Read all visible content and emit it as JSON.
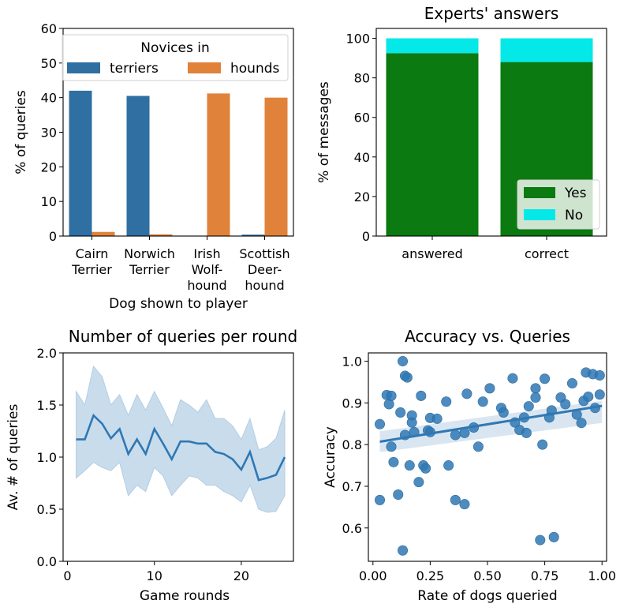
{
  "chart_data": [
    {
      "type": "bar",
      "xlabel": "Dog shown to player",
      "ylabel": "% of queries",
      "ylim": [
        0,
        60
      ],
      "yticks": [
        "0",
        "10",
        "20",
        "30",
        "40",
        "50",
        "60"
      ],
      "categories": [
        [
          "Cairn",
          "Terrier"
        ],
        [
          "Norwich",
          "Terrier"
        ],
        [
          "Irish",
          "Wolf-",
          "hound"
        ],
        [
          "Scottish",
          "Deer-",
          "hound"
        ]
      ],
      "legend_title": "Novices in",
      "legend_position": "top",
      "series": [
        {
          "name": "terriers",
          "color": "#2f6fa2",
          "values": [
            42.0,
            40.5,
            0.0,
            0.4
          ]
        },
        {
          "name": "hounds",
          "color": "#e0823a",
          "values": [
            1.2,
            0.5,
            41.2,
            40.0
          ]
        }
      ]
    },
    {
      "type": "bar",
      "stacked": true,
      "title": "Experts' answers",
      "ylabel": "% of messages",
      "ylim": [
        0,
        105
      ],
      "yticks": [
        "0",
        "20",
        "40",
        "60",
        "80",
        "100"
      ],
      "categories": [
        "answered",
        "correct"
      ],
      "legend_position": "lower right",
      "series": [
        {
          "name": "Yes",
          "color": "#0b7a10",
          "values": [
            92.5,
            88.0
          ]
        },
        {
          "name": "No",
          "color": "#05e8e8",
          "values": [
            7.5,
            12.0
          ]
        }
      ]
    },
    {
      "type": "line",
      "title": "Number of queries per round",
      "xlabel": "Game rounds",
      "ylabel": "Av. # of queries",
      "xlim": [
        -0.5,
        26
      ],
      "ylim": [
        0.0,
        2.0
      ],
      "xticks": [
        "0",
        "10",
        "20"
      ],
      "yticks": [
        "0.0",
        "0.5",
        "1.0",
        "1.5",
        "2.0"
      ],
      "color": "#2f78b4",
      "band_color": "#c9dcec",
      "x": [
        1,
        2,
        3,
        4,
        5,
        6,
        7,
        8,
        9,
        10,
        11,
        12,
        13,
        14,
        15,
        16,
        17,
        18,
        19,
        20,
        21,
        22,
        23,
        24,
        25
      ],
      "y": [
        1.17,
        1.17,
        1.4,
        1.32,
        1.18,
        1.27,
        1.03,
        1.17,
        1.03,
        1.27,
        1.13,
        0.98,
        1.15,
        1.15,
        1.13,
        1.13,
        1.05,
        1.03,
        0.98,
        0.88,
        1.05,
        0.78,
        0.8,
        0.83,
        1.0
      ],
      "ci_upper": [
        1.63,
        1.5,
        1.87,
        1.77,
        1.5,
        1.6,
        1.4,
        1.6,
        1.45,
        1.63,
        1.47,
        1.3,
        1.55,
        1.5,
        1.43,
        1.55,
        1.37,
        1.37,
        1.3,
        1.17,
        1.37,
        1.07,
        1.1,
        1.18,
        1.45
      ],
      "ci_lower": [
        0.8,
        0.87,
        0.95,
        0.9,
        0.87,
        0.95,
        0.63,
        0.73,
        0.67,
        0.9,
        0.82,
        0.63,
        0.73,
        0.82,
        0.8,
        0.73,
        0.73,
        0.67,
        0.63,
        0.57,
        0.73,
        0.5,
        0.47,
        0.48,
        0.63
      ]
    },
    {
      "type": "scatter",
      "title": "Accuracy vs. Queries",
      "xlabel": "Rate of dogs queried",
      "ylabel": "Accuracy",
      "xlim": [
        -0.02,
        1.02
      ],
      "ylim": [
        0.52,
        1.02
      ],
      "xticks": [
        "0.00",
        "0.25",
        "0.50",
        "0.75",
        "1.00"
      ],
      "yticks": [
        "0.6",
        "0.7",
        "0.8",
        "0.9",
        "1.0"
      ],
      "color": "#2f78b4",
      "regression": {
        "x": [
          0.03,
          1.0
        ],
        "y": [
          0.807,
          0.893
        ],
        "band_upper": [
          0.832,
          0.905
        ],
        "band_lower": [
          0.782,
          0.852
        ]
      },
      "points": [
        [
          0.03,
          0.667
        ],
        [
          0.03,
          0.849
        ],
        [
          0.06,
          0.919
        ],
        [
          0.07,
          0.897
        ],
        [
          0.08,
          0.917
        ],
        [
          0.09,
          0.758
        ],
        [
          0.08,
          0.795
        ],
        [
          0.11,
          0.68
        ],
        [
          0.13,
          1.0
        ],
        [
          0.12,
          0.877
        ],
        [
          0.14,
          0.965
        ],
        [
          0.15,
          0.961
        ],
        [
          0.14,
          0.823
        ],
        [
          0.16,
          0.75
        ],
        [
          0.17,
          0.87
        ],
        [
          0.17,
          0.853
        ],
        [
          0.18,
          0.83
        ],
        [
          0.13,
          0.546
        ],
        [
          0.2,
          0.71
        ],
        [
          0.21,
          0.917
        ],
        [
          0.22,
          0.75
        ],
        [
          0.23,
          0.743
        ],
        [
          0.24,
          0.834
        ],
        [
          0.25,
          0.864
        ],
        [
          0.25,
          0.83
        ],
        [
          0.28,
          0.862
        ],
        [
          0.32,
          0.903
        ],
        [
          0.33,
          0.75
        ],
        [
          0.36,
          0.823
        ],
        [
          0.36,
          0.667
        ],
        [
          0.4,
          0.657
        ],
        [
          0.41,
          0.922
        ],
        [
          0.4,
          0.828
        ],
        [
          0.44,
          0.841
        ],
        [
          0.46,
          0.795
        ],
        [
          0.48,
          0.903
        ],
        [
          0.51,
          0.935
        ],
        [
          0.56,
          0.888
        ],
        [
          0.57,
          0.877
        ],
        [
          0.61,
          0.959
        ],
        [
          0.62,
          0.853
        ],
        [
          0.64,
          0.835
        ],
        [
          0.66,
          0.865
        ],
        [
          0.67,
          0.828
        ],
        [
          0.68,
          0.892
        ],
        [
          0.71,
          0.935
        ],
        [
          0.71,
          0.913
        ],
        [
          0.73,
          0.571
        ],
        [
          0.74,
          0.8
        ],
        [
          0.75,
          0.958
        ],
        [
          0.77,
          0.865
        ],
        [
          0.78,
          0.882
        ],
        [
          0.79,
          0.578
        ],
        [
          0.82,
          0.913
        ],
        [
          0.84,
          0.897
        ],
        [
          0.87,
          0.947
        ],
        [
          0.89,
          0.872
        ],
        [
          0.91,
          0.852
        ],
        [
          0.92,
          0.905
        ],
        [
          0.93,
          0.973
        ],
        [
          0.94,
          0.915
        ],
        [
          0.96,
          0.969
        ],
        [
          0.97,
          0.888
        ],
        [
          0.99,
          0.966
        ],
        [
          0.99,
          0.92
        ]
      ]
    }
  ]
}
